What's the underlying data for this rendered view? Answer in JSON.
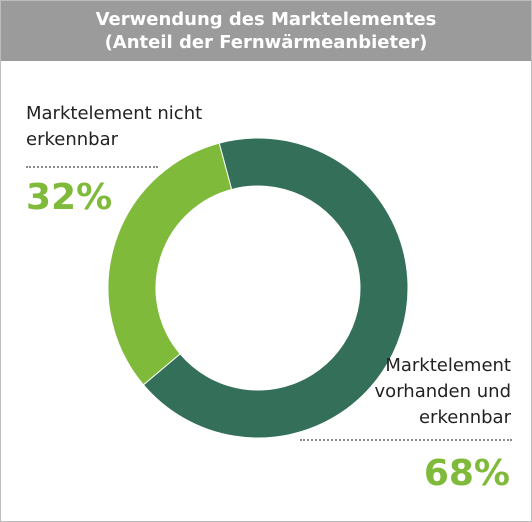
{
  "header": {
    "title_line1": "Verwendung des Marktelementes",
    "title_line2": "(Anteil der Fernwärmeanbieter)"
  },
  "chart_data": {
    "type": "pie",
    "title": "Verwendung des Marktelementes",
    "subtitle": "(Anteil der Fernwärmeanbieter)",
    "donut": true,
    "slices": [
      {
        "label_line1": "Marktelement vorhanden und",
        "label_line2": "erkennbar",
        "label_parts": [
          "Marktelement",
          "vorhanden und",
          "erkennbar"
        ],
        "value": 68,
        "display": "68%",
        "color": "#346f59"
      },
      {
        "label_parts": [
          "Marktelement nicht",
          "erkennbar"
        ],
        "value": 32,
        "display": "32%",
        "color": "#7fba3b"
      }
    ]
  },
  "colors": {
    "header_bg": "#9b9b9b",
    "accent_dark": "#346f59",
    "accent_light": "#7fba3b"
  }
}
